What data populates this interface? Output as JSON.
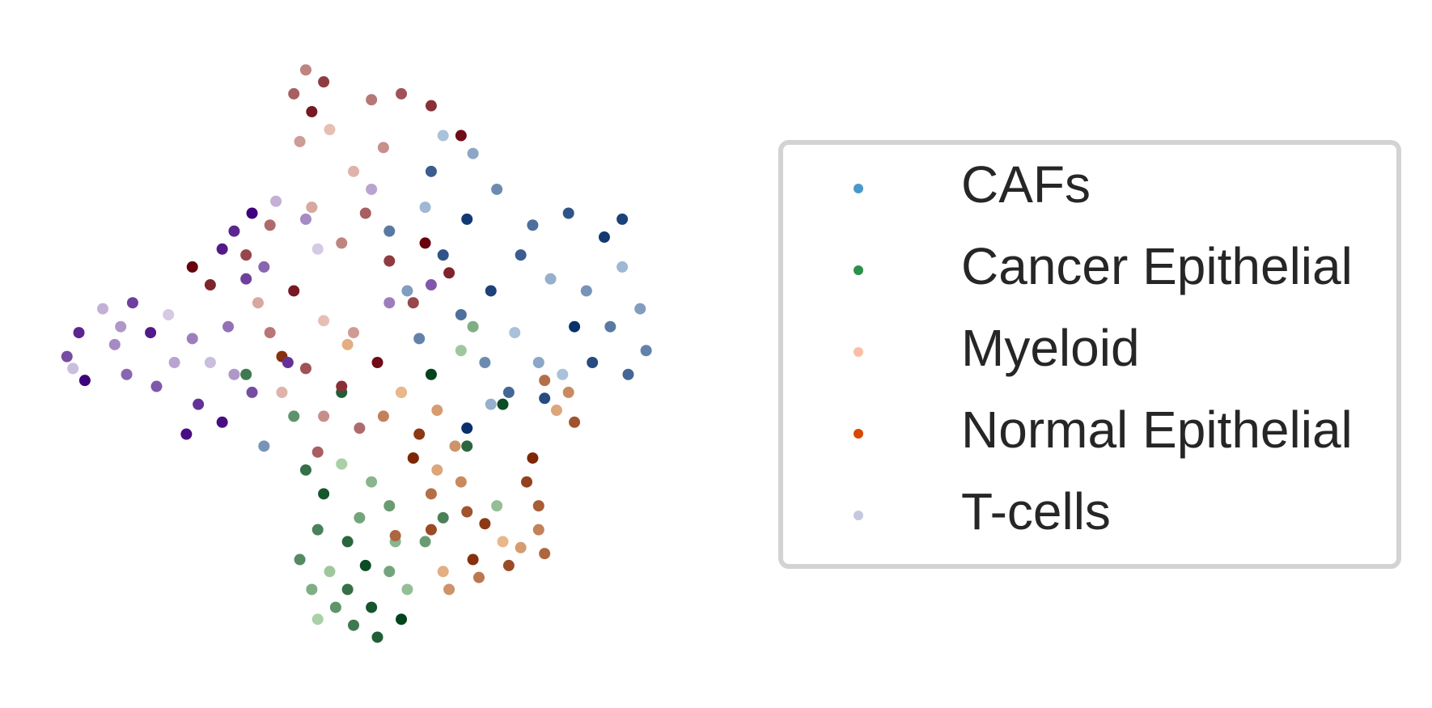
{
  "chart_data": {
    "type": "scatter",
    "xlim": [
      0,
      10
    ],
    "ylim": [
      0,
      10
    ],
    "grid": false,
    "legend": "right",
    "series": [
      {
        "name": "CAFs",
        "color": "#4a98c9",
        "cmap": [
          "#c6dbef",
          "#08306b"
        ],
        "x": [
          6.5,
          7.0,
          7.4,
          8.0,
          8.6,
          9.2,
          9.5,
          9.8,
          9.9,
          9.6,
          9.0,
          8.7,
          8.3,
          8.9,
          9.3,
          7.8,
          7.3,
          7.7,
          8.1,
          7.2,
          6.8,
          6.5,
          6.9,
          6.2,
          5.9,
          6.1,
          7.6,
          8.2,
          6.9,
          7.3,
          3.5,
          5.6,
          6.3,
          9.5,
          8.5
        ],
        "y": [
          8.8,
          8.5,
          7.9,
          7.3,
          7.5,
          7.1,
          6.6,
          5.9,
          5.2,
          4.8,
          5.0,
          5.6,
          6.4,
          6.2,
          5.6,
          6.8,
          6.2,
          5.5,
          5.0,
          5.0,
          5.8,
          6.8,
          7.4,
          7.6,
          6.2,
          5.4,
          4.5,
          4.4,
          3.9,
          4.3,
          3.6,
          7.2,
          8.2,
          7.4,
          4.8
        ]
      },
      {
        "name": "Cancer Epithelial",
        "color": "#2a924a",
        "cmap": [
          "#c7e9c0",
          "#00441b"
        ],
        "x": [
          4.2,
          4.5,
          4.8,
          5.3,
          5.6,
          4.4,
          4.9,
          5.2,
          4.6,
          4.3,
          4.7,
          5.0,
          5.4,
          5.8,
          5.9,
          5.6,
          4.1,
          4.9,
          5.3,
          4.4,
          5.7,
          6.2,
          6.5,
          6.9,
          7.5,
          6.8,
          7.0,
          4.0,
          3.2,
          4.8,
          6.3,
          7.4,
          5.1,
          6.0
        ],
        "y": [
          3.2,
          2.8,
          3.3,
          3.0,
          2.6,
          2.2,
          2.0,
          1.6,
          1.5,
          1.2,
          0.9,
          0.6,
          0.4,
          0.7,
          1.2,
          1.5,
          1.7,
          1.2,
          0.9,
          0.7,
          2.0,
          2.0,
          2.4,
          3.6,
          4.3,
          5.2,
          5.6,
          4.1,
          4.8,
          4.5,
          4.8,
          2.6,
          2.4,
          3.4
        ]
      },
      {
        "name": "Myeloid",
        "color": "#fcbea5",
        "cmap": [
          "#fee0d2",
          "#67000d"
        ],
        "x": [
          4.2,
          4.0,
          4.5,
          4.3,
          4.6,
          4.1,
          5.3,
          5.8,
          6.3,
          6.8,
          5.0,
          5.5,
          3.6,
          3.2,
          2.6,
          2.3,
          4.3,
          4.8,
          5.2,
          5.6,
          4.0,
          4.5,
          5.0,
          3.6,
          4.2,
          4.8,
          5.4,
          3.8,
          4.5,
          5.1,
          6.0,
          6.6,
          6.2,
          3.4,
          5.8,
          4.4
        ],
        "y": [
          9.9,
          9.5,
          9.7,
          9.2,
          8.9,
          8.7,
          9.4,
          9.5,
          9.3,
          8.8,
          8.2,
          8.6,
          7.3,
          6.8,
          6.3,
          6.6,
          7.6,
          7.0,
          7.5,
          6.7,
          6.2,
          5.7,
          5.5,
          5.5,
          4.9,
          4.6,
          5.0,
          4.5,
          4.1,
          3.9,
          6.0,
          6.5,
          7.0,
          6.0,
          4.5,
          3.5
        ]
      },
      {
        "name": "Normal Epithelial",
        "color": "#d94801",
        "cmap": [
          "#fdd0a2",
          "#7f2704"
        ],
        "x": [
          6.0,
          6.4,
          6.8,
          6.3,
          6.9,
          7.2,
          7.5,
          7.8,
          8.1,
          8.2,
          7.6,
          7.0,
          6.5,
          6.6,
          7.1,
          8.1,
          7.9,
          8.0,
          8.4,
          8.6,
          8.2,
          8.7,
          6.1,
          5.8,
          6.4,
          5.5,
          5.7,
          6.3,
          3.8,
          4.9,
          6.7
        ],
        "y": [
          3.4,
          3.2,
          3.0,
          2.8,
          2.5,
          2.3,
          2.0,
          1.9,
          2.2,
          1.8,
          1.6,
          1.7,
          1.5,
          1.2,
          1.4,
          2.6,
          3.0,
          3.4,
          4.2,
          4.5,
          4.7,
          4.0,
          3.8,
          4.5,
          4.2,
          4.1,
          2.1,
          2.2,
          5.1,
          5.3,
          3.6
        ]
      },
      {
        "name": "T-cells",
        "color": "#c6c7e1",
        "cmap": [
          "#efedf5",
          "#3f007d"
        ],
        "x": [
          0.2,
          0.4,
          0.5,
          0.8,
          1.0,
          1.2,
          1.3,
          1.6,
          1.9,
          2.0,
          2.3,
          1.7,
          2.4,
          2.8,
          2.6,
          3.0,
          2.9,
          3.3,
          3.0,
          3.3,
          3.7,
          4.2,
          3.5,
          3.2,
          2.8,
          4.4,
          5.3,
          5.6,
          6.3,
          3.9,
          2.2,
          0.3,
          1.1
        ],
        "y": [
          5.1,
          5.5,
          4.7,
          5.9,
          5.3,
          4.8,
          6.0,
          5.5,
          5.8,
          5.0,
          5.4,
          4.6,
          4.3,
          4.0,
          5.0,
          4.8,
          5.6,
          4.5,
          7.2,
          7.5,
          7.7,
          7.4,
          6.6,
          6.4,
          6.9,
          6.9,
          7.9,
          6.0,
          6.3,
          5.0,
          3.8,
          4.9,
          5.6
        ]
      }
    ]
  }
}
